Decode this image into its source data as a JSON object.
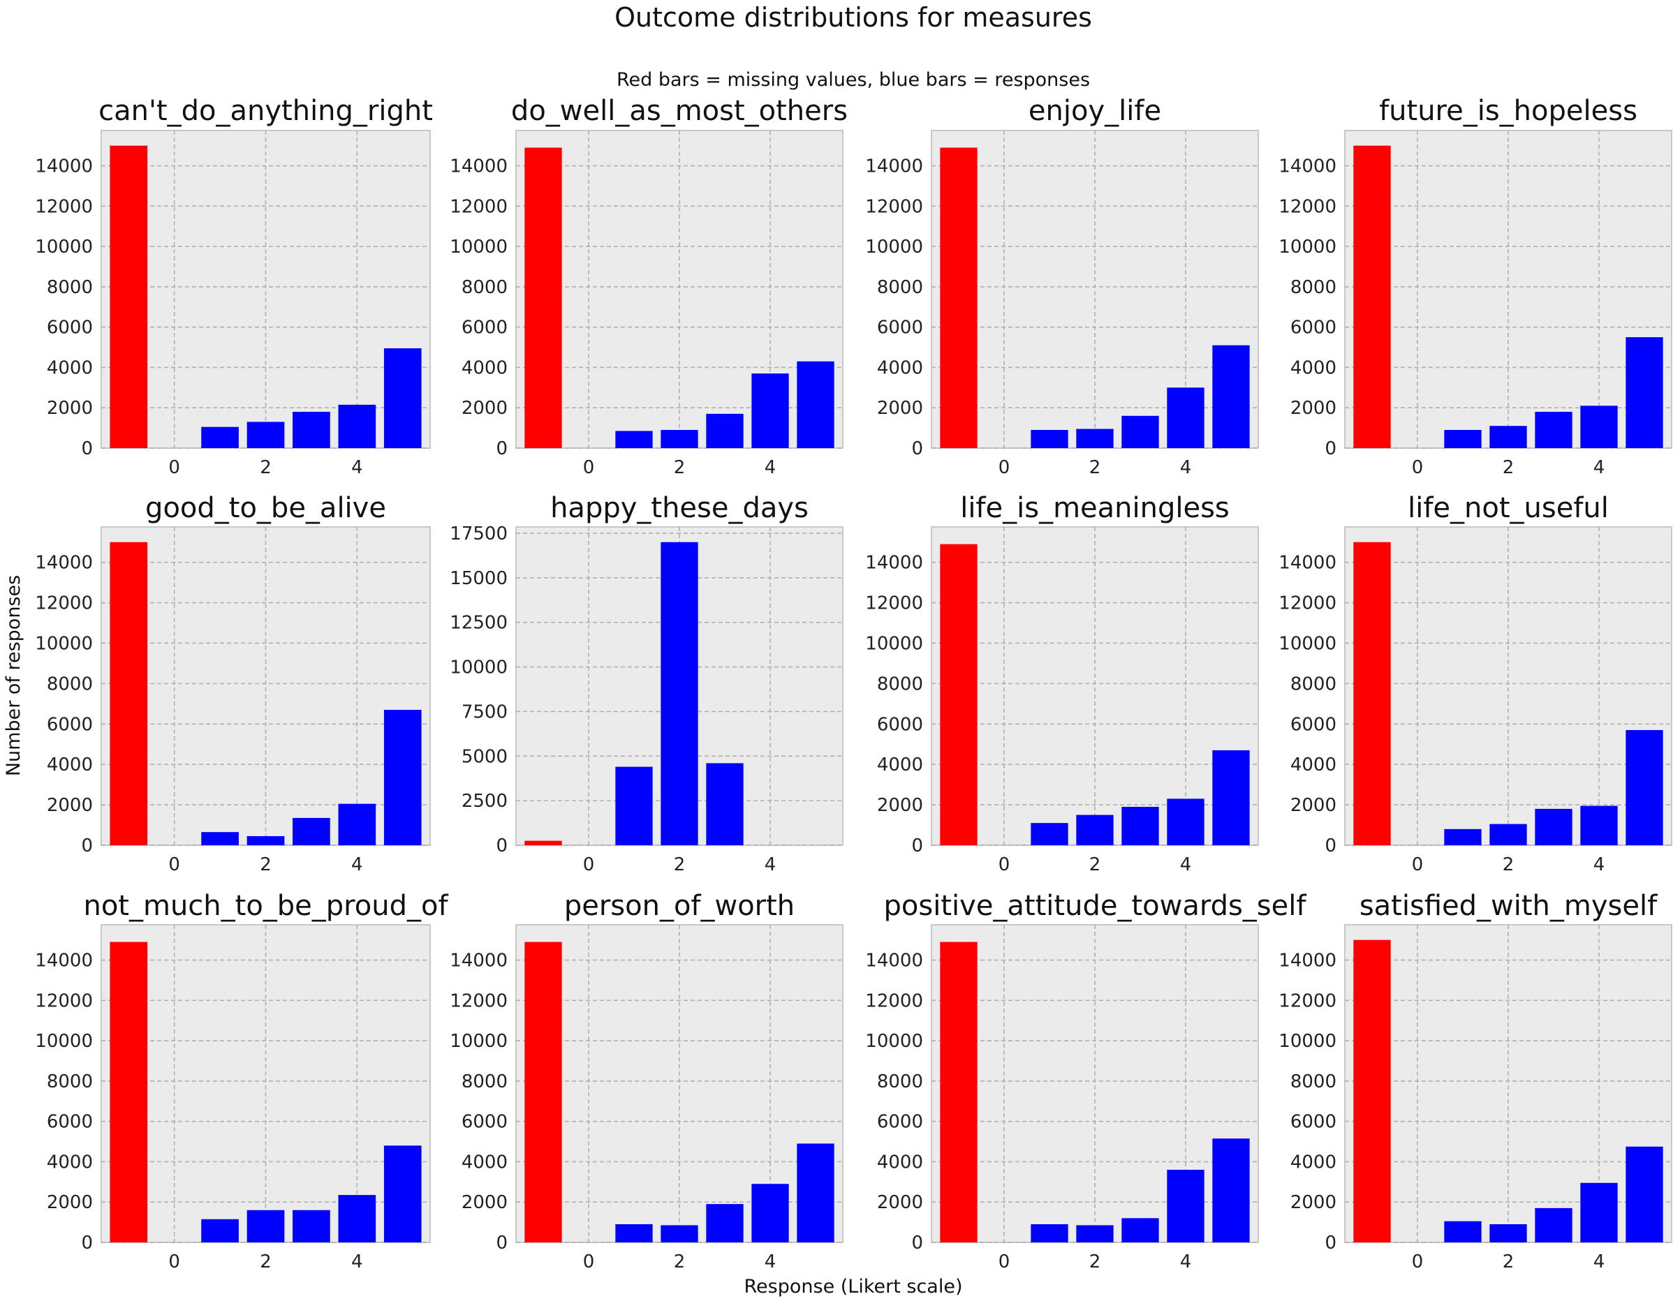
{
  "figure": {
    "title": "Outcome distributions for measures",
    "subtitle": "Red bars = missing values, blue bars = responses",
    "xlabel": "Response (Likert scale)",
    "ylabel": "Number of responses"
  },
  "colors": {
    "missing": "#ff0000",
    "response": "#0000ff"
  },
  "chart_data": [
    {
      "type": "bar",
      "title": "can't_do_anything_right",
      "x": [
        -1,
        1,
        2,
        3,
        4,
        5
      ],
      "values": [
        15000,
        1050,
        1300,
        1800,
        2150,
        4950
      ],
      "missing_x": -1,
      "ylim": [
        0,
        15750
      ],
      "yticks": [
        0,
        2000,
        4000,
        6000,
        8000,
        10000,
        12000,
        14000
      ],
      "xticks": [
        0,
        2,
        4
      ],
      "xlim": [
        -1.6,
        5.6
      ]
    },
    {
      "type": "bar",
      "title": "do_well_as_most_others",
      "x": [
        -1,
        1,
        2,
        3,
        4,
        5
      ],
      "values": [
        14900,
        850,
        900,
        1700,
        3700,
        4300
      ],
      "missing_x": -1,
      "ylim": [
        0,
        15750
      ],
      "yticks": [
        0,
        2000,
        4000,
        6000,
        8000,
        10000,
        12000,
        14000
      ],
      "xticks": [
        0,
        2,
        4
      ],
      "xlim": [
        -1.6,
        5.6
      ]
    },
    {
      "type": "bar",
      "title": "enjoy_life",
      "x": [
        -1,
        1,
        2,
        3,
        4,
        5
      ],
      "values": [
        14900,
        900,
        950,
        1600,
        3000,
        5100
      ],
      "missing_x": -1,
      "ylim": [
        0,
        15750
      ],
      "yticks": [
        0,
        2000,
        4000,
        6000,
        8000,
        10000,
        12000,
        14000
      ],
      "xticks": [
        0,
        2,
        4
      ],
      "xlim": [
        -1.6,
        5.6
      ]
    },
    {
      "type": "bar",
      "title": "future_is_hopeless",
      "x": [
        -1,
        1,
        2,
        3,
        4,
        5
      ],
      "values": [
        15000,
        900,
        1100,
        1800,
        2100,
        5500
      ],
      "missing_x": -1,
      "ylim": [
        0,
        15750
      ],
      "yticks": [
        0,
        2000,
        4000,
        6000,
        8000,
        10000,
        12000,
        14000
      ],
      "xticks": [
        0,
        2,
        4
      ],
      "xlim": [
        -1.6,
        5.6
      ]
    },
    {
      "type": "bar",
      "title": "good_to_be_alive",
      "x": [
        -1,
        1,
        2,
        3,
        4,
        5
      ],
      "values": [
        15000,
        650,
        450,
        1350,
        2050,
        6700
      ],
      "missing_x": -1,
      "ylim": [
        0,
        15750
      ],
      "yticks": [
        0,
        2000,
        4000,
        6000,
        8000,
        10000,
        12000,
        14000
      ],
      "xticks": [
        0,
        2,
        4
      ],
      "xlim": [
        -1.6,
        5.6
      ]
    },
    {
      "type": "bar",
      "title": "happy_these_days",
      "x": [
        -1,
        1,
        2,
        3
      ],
      "values": [
        250,
        4400,
        17000,
        4600
      ],
      "missing_x": -1,
      "ylim": [
        0,
        17850
      ],
      "yticks": [
        0,
        2500,
        5000,
        7500,
        10000,
        12500,
        15000,
        17500
      ],
      "xticks": [
        0,
        2,
        4
      ],
      "xlim": [
        -1.6,
        5.6
      ]
    },
    {
      "type": "bar",
      "title": "life_is_meaningless",
      "x": [
        -1,
        1,
        2,
        3,
        4,
        5
      ],
      "values": [
        14900,
        1100,
        1500,
        1900,
        2300,
        4700
      ],
      "missing_x": -1,
      "ylim": [
        0,
        15750
      ],
      "yticks": [
        0,
        2000,
        4000,
        6000,
        8000,
        10000,
        12000,
        14000
      ],
      "xticks": [
        0,
        2,
        4
      ],
      "xlim": [
        -1.6,
        5.6
      ]
    },
    {
      "type": "bar",
      "title": "life_not_useful",
      "x": [
        -1,
        1,
        2,
        3,
        4,
        5
      ],
      "values": [
        15000,
        800,
        1050,
        1800,
        1950,
        5700
      ],
      "missing_x": -1,
      "ylim": [
        0,
        15750
      ],
      "yticks": [
        0,
        2000,
        4000,
        6000,
        8000,
        10000,
        12000,
        14000
      ],
      "xticks": [
        0,
        2,
        4
      ],
      "xlim": [
        -1.6,
        5.6
      ]
    },
    {
      "type": "bar",
      "title": "not_much_to_be_proud_of",
      "x": [
        -1,
        1,
        2,
        3,
        4,
        5
      ],
      "values": [
        14900,
        1150,
        1600,
        1600,
        2350,
        4800
      ],
      "missing_x": -1,
      "ylim": [
        0,
        15750
      ],
      "yticks": [
        0,
        2000,
        4000,
        6000,
        8000,
        10000,
        12000,
        14000
      ],
      "xticks": [
        0,
        2,
        4
      ],
      "xlim": [
        -1.6,
        5.6
      ]
    },
    {
      "type": "bar",
      "title": "person_of_worth",
      "x": [
        -1,
        1,
        2,
        3,
        4,
        5
      ],
      "values": [
        14900,
        900,
        850,
        1900,
        2900,
        4900
      ],
      "missing_x": -1,
      "ylim": [
        0,
        15750
      ],
      "yticks": [
        0,
        2000,
        4000,
        6000,
        8000,
        10000,
        12000,
        14000
      ],
      "xticks": [
        0,
        2,
        4
      ],
      "xlim": [
        -1.6,
        5.6
      ]
    },
    {
      "type": "bar",
      "title": "positive_attitude_towards_self",
      "x": [
        -1,
        1,
        2,
        3,
        4,
        5
      ],
      "values": [
        14900,
        900,
        850,
        1200,
        3600,
        5150
      ],
      "missing_x": -1,
      "ylim": [
        0,
        15750
      ],
      "yticks": [
        0,
        2000,
        4000,
        6000,
        8000,
        10000,
        12000,
        14000
      ],
      "xticks": [
        0,
        2,
        4
      ],
      "xlim": [
        -1.6,
        5.6
      ]
    },
    {
      "type": "bar",
      "title": "satisfied_with_myself",
      "x": [
        -1,
        1,
        2,
        3,
        4,
        5
      ],
      "values": [
        15000,
        1050,
        900,
        1700,
        2950,
        4750
      ],
      "missing_x": -1,
      "ylim": [
        0,
        15750
      ],
      "yticks": [
        0,
        2000,
        4000,
        6000,
        8000,
        10000,
        12000,
        14000
      ],
      "xticks": [
        0,
        2,
        4
      ],
      "xlim": [
        -1.6,
        5.6
      ]
    }
  ]
}
